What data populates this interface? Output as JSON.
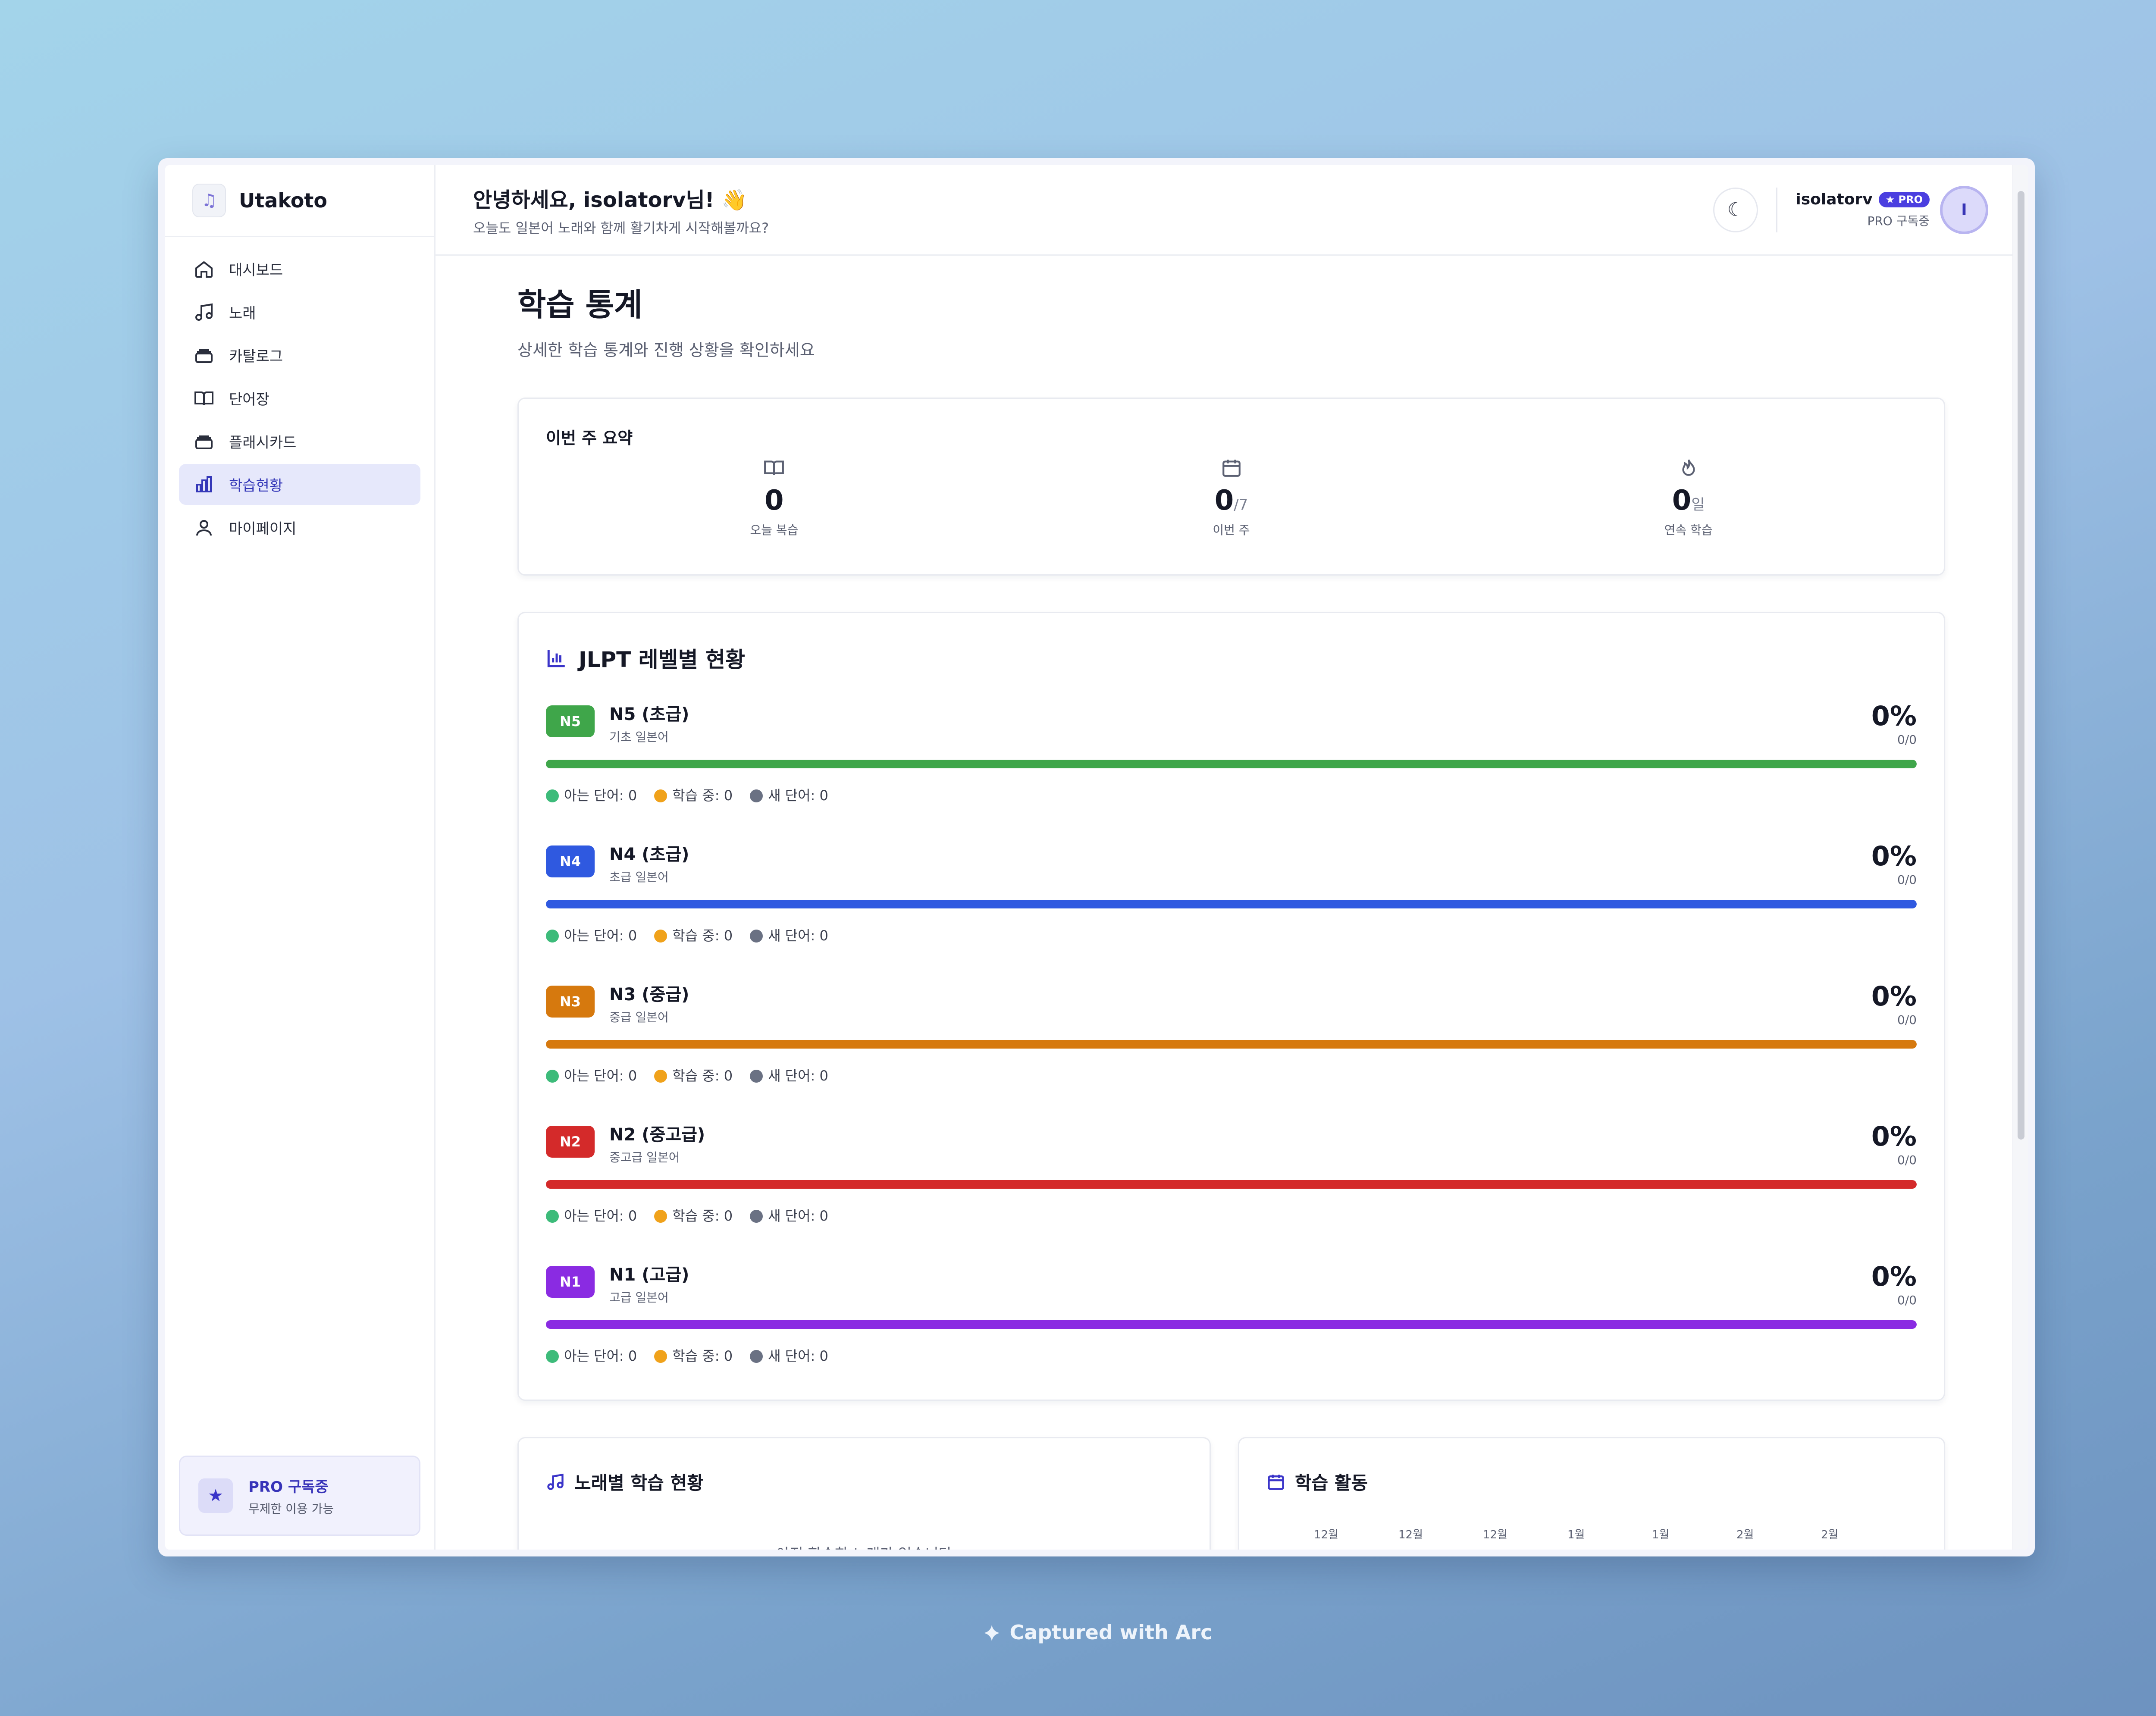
{
  "sidebar": {
    "brand": "Utakoto",
    "items": [
      {
        "label": "대시보드",
        "icon": "home-icon"
      },
      {
        "label": "노래",
        "icon": "music-note-icon"
      },
      {
        "label": "카탈로그",
        "icon": "layers-icon"
      },
      {
        "label": "단어장",
        "icon": "book-icon"
      },
      {
        "label": "플래시카드",
        "icon": "layers-icon"
      },
      {
        "label": "학습현황",
        "icon": "bar-chart-icon",
        "active": true
      },
      {
        "label": "마이페이지",
        "icon": "user-icon"
      }
    ],
    "pro": {
      "title": "PRO 구독중",
      "sub": "무제한 이용 가능"
    }
  },
  "header": {
    "greeting": "안녕하세요, isolatorv님! 👋",
    "subtitle": "오늘도 일본어 노래와 함께 활기차게 시작해볼까요?",
    "username": "isolatorv",
    "badge": "★ PRO",
    "status": "PRO 구독중",
    "avatar_initial": "I"
  },
  "page": {
    "title": "학습 통계",
    "subtitle": "상세한 학습 통계와 진행 상황을 확인하세요"
  },
  "summary": {
    "title": "이번 주 요약",
    "stats": [
      {
        "value": "0",
        "suffix": "",
        "label": "오늘 복습"
      },
      {
        "value": "0",
        "suffix": "/7",
        "label": "이번 주"
      },
      {
        "value": "0",
        "suffix": "일",
        "label": "연속 학습"
      }
    ]
  },
  "jlpt": {
    "title": "JLPT 레벨별 현황",
    "legend_labels": {
      "known": "아는 단어: 0",
      "learning": "학습 중: 0",
      "new": "새 단어: 0"
    },
    "legend_colors": {
      "known": "#3dbb7a",
      "learning": "#f0a21b",
      "new": "#6a7183"
    },
    "levels": [
      {
        "badge": "N5",
        "name": "N5 (초급)",
        "desc": "기초 일본어",
        "pct": "0%",
        "frac": "0/0",
        "color": "#3fa64a",
        "progress": 1.0
      },
      {
        "badge": "N4",
        "name": "N4 (초급)",
        "desc": "초급 일본어",
        "pct": "0%",
        "frac": "0/0",
        "color": "#2f59e0",
        "progress": 1.0
      },
      {
        "badge": "N3",
        "name": "N3 (중급)",
        "desc": "중급 일본어",
        "pct": "0%",
        "frac": "0/0",
        "color": "#d6790e",
        "progress": 1.0
      },
      {
        "badge": "N2",
        "name": "N2 (중고급)",
        "desc": "중고급 일본어",
        "pct": "0%",
        "frac": "0/0",
        "color": "#d42a2a",
        "progress": 1.0
      },
      {
        "badge": "N1",
        "name": "N1 (고급)",
        "desc": "고급 일본어",
        "pct": "0%",
        "frac": "0/0",
        "color": "#8a2be2",
        "progress": 1.0
      }
    ]
  },
  "songs_card": {
    "title": "노래별 학습 현황",
    "empty": "아직 학습한 노래가 없습니다"
  },
  "activity_card": {
    "title": "학습 활동",
    "months": [
      "12월",
      "12월",
      "12월",
      "1월",
      "1월",
      "2월",
      "2월"
    ]
  },
  "footer": {
    "caption": "Captured with Arc"
  }
}
